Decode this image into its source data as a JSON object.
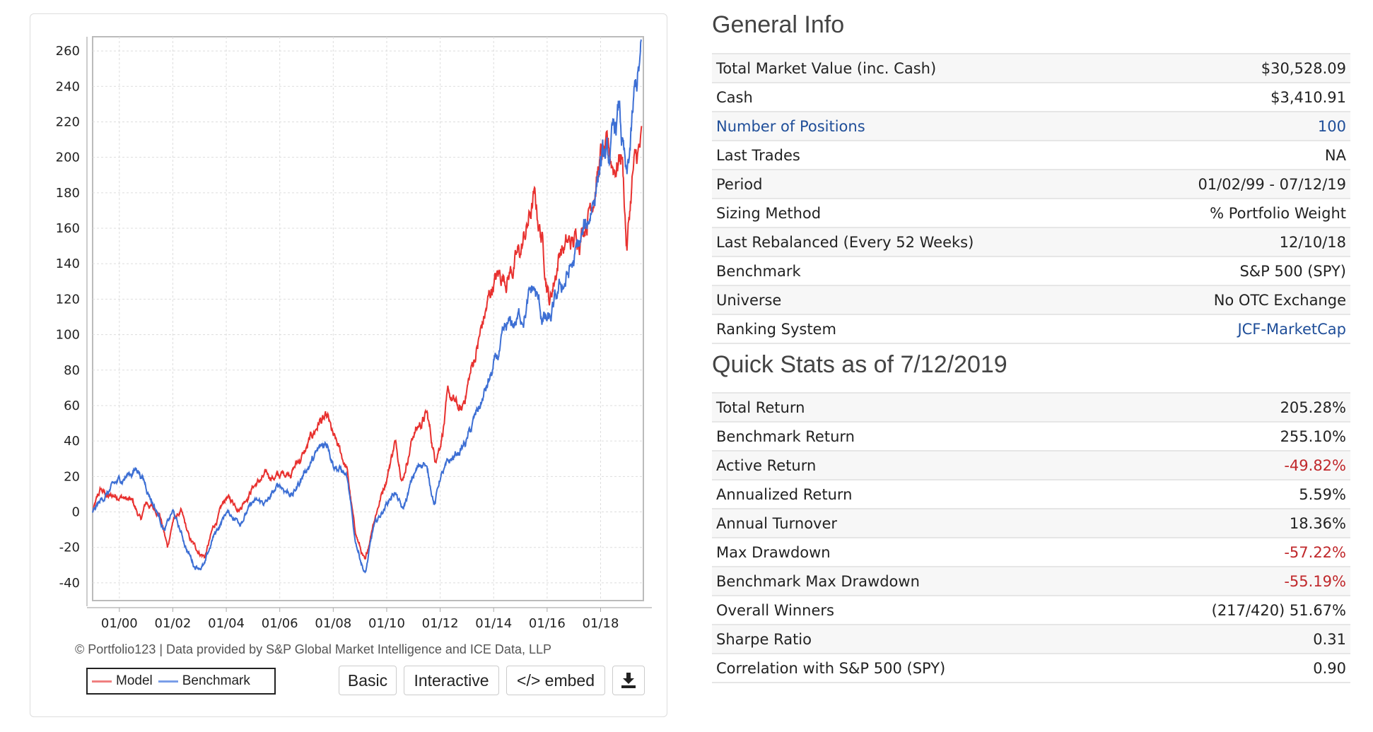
{
  "chart_data": {
    "type": "line",
    "title": "",
    "xlabel": "",
    "ylabel": "",
    "xlim": [
      1999.0,
      2019.6
    ],
    "ylim": [
      -50,
      268
    ],
    "yticks": [
      260,
      240,
      220,
      200,
      180,
      160,
      140,
      120,
      100,
      80,
      60,
      40,
      20,
      0,
      -20,
      -40
    ],
    "xticks": [
      {
        "label": "01/00",
        "x": 2000
      },
      {
        "label": "01/02",
        "x": 2002
      },
      {
        "label": "01/04",
        "x": 2004
      },
      {
        "label": "01/06",
        "x": 2006
      },
      {
        "label": "01/08",
        "x": 2008
      },
      {
        "label": "01/10",
        "x": 2010
      },
      {
        "label": "01/12",
        "x": 2012
      },
      {
        "label": "01/14",
        "x": 2014
      },
      {
        "label": "01/16",
        "x": 2016
      },
      {
        "label": "01/18",
        "x": 2018
      }
    ],
    "grid": true,
    "legend_position": "bottom-left",
    "series": [
      {
        "name": "Model",
        "color": "#e8312f",
        "points": [
          [
            1999.0,
            0
          ],
          [
            1999.3,
            12
          ],
          [
            1999.6,
            8
          ],
          [
            2000.0,
            10
          ],
          [
            2000.5,
            5
          ],
          [
            2000.8,
            -5
          ],
          [
            2001.0,
            5
          ],
          [
            2001.5,
            0
          ],
          [
            2001.8,
            -20
          ],
          [
            2002.0,
            -5
          ],
          [
            2002.3,
            0
          ],
          [
            2002.6,
            -15
          ],
          [
            2002.8,
            -20
          ],
          [
            2003.2,
            -25
          ],
          [
            2003.5,
            -10
          ],
          [
            2004.0,
            8
          ],
          [
            2004.5,
            3
          ],
          [
            2005.0,
            15
          ],
          [
            2005.5,
            20
          ],
          [
            2006.0,
            20
          ],
          [
            2006.5,
            25
          ],
          [
            2007.0,
            35
          ],
          [
            2007.5,
            52
          ],
          [
            2007.8,
            50
          ],
          [
            2008.0,
            40
          ],
          [
            2008.5,
            25
          ],
          [
            2008.8,
            -10
          ],
          [
            2009.2,
            -30
          ],
          [
            2009.5,
            -5
          ],
          [
            2010.0,
            20
          ],
          [
            2010.3,
            40
          ],
          [
            2010.6,
            20
          ],
          [
            2011.0,
            45
          ],
          [
            2011.5,
            55
          ],
          [
            2011.8,
            30
          ],
          [
            2012.0,
            40
          ],
          [
            2012.3,
            65
          ],
          [
            2012.8,
            55
          ],
          [
            2013.0,
            70
          ],
          [
            2013.5,
            100
          ],
          [
            2014.0,
            130
          ],
          [
            2014.5,
            135
          ],
          [
            2015.0,
            145
          ],
          [
            2015.5,
            175
          ],
          [
            2015.8,
            155
          ],
          [
            2016.1,
            120
          ],
          [
            2016.5,
            150
          ],
          [
            2017.0,
            150
          ],
          [
            2017.5,
            170
          ],
          [
            2018.0,
            200
          ],
          [
            2018.5,
            195
          ],
          [
            2018.8,
            205
          ],
          [
            2018.98,
            150
          ],
          [
            2019.2,
            190
          ],
          [
            2019.53,
            205
          ]
        ]
      },
      {
        "name": "Benchmark",
        "color": "#3d6fd4",
        "points": [
          [
            1999.0,
            0
          ],
          [
            1999.5,
            10
          ],
          [
            2000.2,
            20
          ],
          [
            2000.7,
            25
          ],
          [
            2001.0,
            15
          ],
          [
            2001.7,
            -10
          ],
          [
            2002.0,
            0
          ],
          [
            2002.5,
            -20
          ],
          [
            2002.8,
            -30
          ],
          [
            2003.2,
            -30
          ],
          [
            2003.5,
            -15
          ],
          [
            2004.0,
            0
          ],
          [
            2004.5,
            -5
          ],
          [
            2005.0,
            5
          ],
          [
            2005.5,
            5
          ],
          [
            2006.0,
            15
          ],
          [
            2006.5,
            10
          ],
          [
            2007.0,
            25
          ],
          [
            2007.8,
            40
          ],
          [
            2008.0,
            30
          ],
          [
            2008.5,
            20
          ],
          [
            2008.8,
            -15
          ],
          [
            2009.2,
            -35
          ],
          [
            2009.5,
            -10
          ],
          [
            2010.0,
            5
          ],
          [
            2010.3,
            12
          ],
          [
            2010.6,
            0
          ],
          [
            2011.0,
            20
          ],
          [
            2011.4,
            30
          ],
          [
            2011.8,
            5
          ],
          [
            2012.0,
            20
          ],
          [
            2012.5,
            30
          ],
          [
            2013.0,
            40
          ],
          [
            2013.5,
            60
          ],
          [
            2014.0,
            80
          ],
          [
            2014.5,
            100
          ],
          [
            2015.0,
            110
          ],
          [
            2015.5,
            125
          ],
          [
            2015.8,
            110
          ],
          [
            2016.1,
            105
          ],
          [
            2016.5,
            125
          ],
          [
            2017.0,
            140
          ],
          [
            2017.5,
            160
          ],
          [
            2018.0,
            200
          ],
          [
            2018.3,
            195
          ],
          [
            2018.7,
            225
          ],
          [
            2018.98,
            180
          ],
          [
            2019.3,
            235
          ],
          [
            2019.53,
            255
          ]
        ]
      }
    ]
  },
  "chart": {
    "credit": "© Portfolio123 | Data provided by S&P Global Market Intelligence and ICE Data, LLP",
    "legend": {
      "model": "Model",
      "benchmark": "Benchmark",
      "model_color": "#f08080",
      "benchmark_color": "#7a9ee8"
    },
    "buttons": {
      "basic": "Basic",
      "interactive": "Interactive",
      "embed": "</> embed",
      "download_icon": "download-icon"
    }
  },
  "general_info": {
    "title": "General Info",
    "rows": [
      {
        "label": "Total Market Value (inc. Cash)",
        "value": "$30,528.09"
      },
      {
        "label": "Cash",
        "value": "$3,410.91"
      },
      {
        "label": "Number of Positions",
        "value": "100"
      },
      {
        "label": "Last Trades",
        "value": "NA"
      },
      {
        "label": "Period",
        "value": "01/02/99 - 07/12/19"
      },
      {
        "label": "Sizing Method",
        "value": "% Portfolio Weight"
      },
      {
        "label": "Last Rebalanced (Every 52 Weeks)",
        "value": "12/10/18"
      },
      {
        "label": "Benchmark",
        "value": "S&P 500 (SPY)"
      },
      {
        "label": "Universe",
        "value": "No OTC Exchange"
      },
      {
        "label": "Ranking System",
        "value": "JCF-MarketCap"
      }
    ]
  },
  "quick_stats": {
    "title": "Quick Stats as of 7/12/2019",
    "rows": [
      {
        "label": "Total Return",
        "value": "205.28%"
      },
      {
        "label": "Benchmark Return",
        "value": "255.10%"
      },
      {
        "label": "Active Return",
        "value": "-49.82%"
      },
      {
        "label": "Annualized Return",
        "value": "5.59%"
      },
      {
        "label": "Annual Turnover",
        "value": "18.36%"
      },
      {
        "label": "Max Drawdown",
        "value": "-57.22%"
      },
      {
        "label": "Benchmark Max Drawdown",
        "value": "-55.19%"
      },
      {
        "label": "Overall Winners",
        "value": "(217/420) 51.67%"
      },
      {
        "label": "Sharpe Ratio",
        "value": "0.31"
      },
      {
        "label": "Correlation with S&P 500 (SPY)",
        "value": "0.90"
      }
    ]
  },
  "colors": {
    "link": "#1f4e99",
    "negative": "#c0282b"
  }
}
